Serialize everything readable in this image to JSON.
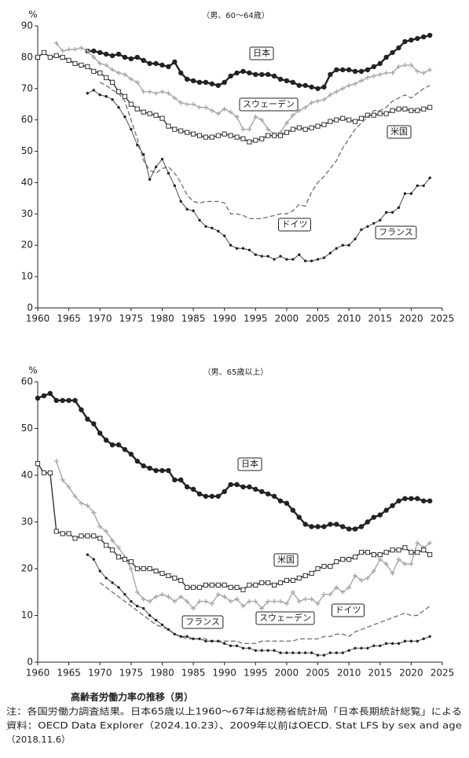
{
  "chart_data": [
    {
      "type": "line",
      "subtitle": "（男、60～64歳）",
      "ylabel": "%",
      "x": [
        1960,
        1961,
        1962,
        1963,
        1964,
        1965,
        1966,
        1967,
        1968,
        1969,
        1970,
        1971,
        1972,
        1973,
        1974,
        1975,
        1976,
        1977,
        1978,
        1979,
        1980,
        1981,
        1982,
        1983,
        1984,
        1985,
        1986,
        1987,
        1988,
        1989,
        1990,
        1991,
        1992,
        1993,
        1994,
        1995,
        1996,
        1997,
        1998,
        1999,
        2000,
        2001,
        2002,
        2003,
        2004,
        2005,
        2006,
        2007,
        2008,
        2009,
        2010,
        2011,
        2012,
        2013,
        2014,
        2015,
        2016,
        2017,
        2018,
        2019,
        2020,
        2021,
        2022,
        2023
      ],
      "xlim": [
        1960,
        2025
      ],
      "xticks": [
        1960,
        1965,
        1970,
        1975,
        1980,
        1985,
        1990,
        1995,
        2000,
        2005,
        2010,
        2015,
        2020,
        2025
      ],
      "ylim": [
        0,
        90
      ],
      "yticks": [
        0,
        10,
        20,
        30,
        40,
        50,
        60,
        70,
        80,
        90
      ],
      "series": [
        {
          "name": "日本",
          "color": "#222222",
          "marker": "circle",
          "dash": false,
          "values": [
            null,
            null,
            null,
            null,
            null,
            null,
            null,
            null,
            82,
            82,
            81.5,
            81,
            80.5,
            81,
            80,
            79.5,
            80,
            79,
            78,
            78,
            77.5,
            77,
            78.5,
            75,
            73,
            72.5,
            72,
            72,
            71.5,
            71,
            72,
            74,
            75,
            75.5,
            75,
            74.5,
            74.5,
            74.5,
            74,
            73,
            72.5,
            72,
            71,
            71,
            70.5,
            70,
            70.5,
            74.5,
            76,
            76,
            76,
            75.5,
            75.5,
            76,
            77,
            78,
            80,
            81.5,
            83,
            85,
            85.5,
            86,
            86.5,
            87
          ]
        },
        {
          "name": "スウェーデン",
          "color": "#a8a8a8",
          "marker": "plus",
          "dash": false,
          "values": [
            null,
            null,
            null,
            84.5,
            82,
            82.5,
            82.5,
            83,
            82,
            80,
            78,
            77.5,
            76,
            75,
            74.5,
            73,
            72,
            69,
            69,
            68.5,
            69,
            68.5,
            67,
            65.5,
            65,
            65,
            64,
            64,
            63,
            62,
            63.5,
            62.5,
            61,
            57,
            57,
            61,
            60,
            57,
            55.5,
            56,
            59,
            61.5,
            63,
            64,
            65.5,
            66,
            66.5,
            68,
            69,
            70,
            71,
            71.5,
            72.5,
            73.5,
            74,
            74.5,
            75,
            75,
            77,
            77.5,
            77.5,
            75.5,
            75,
            76
          ]
        },
        {
          "name": "米国",
          "color": "#333333",
          "marker": "square",
          "dash": false,
          "values": [
            80,
            81.5,
            80,
            80.5,
            80,
            79,
            78,
            77.5,
            77,
            75.5,
            75,
            73.5,
            72,
            69,
            67.5,
            65,
            63.5,
            62.5,
            62,
            61.5,
            60.5,
            58,
            57,
            56.5,
            56,
            55.5,
            55,
            54.5,
            54.5,
            55,
            55.5,
            55,
            54.5,
            54,
            53,
            53.5,
            54,
            55,
            55,
            55,
            56,
            57,
            57.5,
            57,
            57.5,
            58,
            58.5,
            59.5,
            60,
            60.5,
            60,
            59.5,
            60.5,
            61.5,
            61.5,
            62,
            62,
            63,
            63.5,
            63.5,
            63,
            63,
            63.5,
            64
          ]
        },
        {
          "name": "ドイツ",
          "color": "#777777",
          "marker": "none",
          "dash": true,
          "values": [
            null,
            null,
            null,
            null,
            null,
            null,
            null,
            null,
            null,
            null,
            72,
            71,
            69.5,
            68.5,
            66,
            60,
            54,
            47,
            44,
            43,
            44.5,
            45,
            43,
            40,
            36,
            34,
            33.5,
            34,
            34,
            34,
            33.5,
            30,
            30,
            29.5,
            28.5,
            28.5,
            28.5,
            29,
            29.5,
            30,
            30,
            31,
            33,
            32.5,
            37,
            40,
            42,
            44.5,
            47,
            51,
            54,
            57,
            59,
            61,
            63,
            63,
            64,
            66,
            67,
            68,
            67,
            68.5,
            70,
            71
          ]
        },
        {
          "name": "フランス",
          "color": "#222222",
          "marker": "dot",
          "dash": false,
          "values": [
            null,
            null,
            null,
            null,
            null,
            null,
            null,
            null,
            68.5,
            69.5,
            68,
            67.5,
            66.5,
            64,
            61,
            57,
            52,
            49,
            41,
            45,
            47.5,
            43,
            39,
            34,
            31.5,
            31,
            28,
            26,
            25.5,
            24.5,
            23,
            20,
            19,
            19,
            18.5,
            17,
            16.5,
            16.5,
            15.5,
            16.5,
            15.5,
            15.5,
            17,
            15,
            15,
            15.5,
            16,
            17.5,
            19,
            20,
            20,
            22,
            25,
            26,
            27,
            28,
            30.5,
            30.5,
            32,
            36.5,
            36.5,
            39,
            39,
            41.5
          ]
        }
      ]
    },
    {
      "type": "line",
      "subtitle": "（男、65歳以上）",
      "ylabel": "%",
      "x": [
        1960,
        1961,
        1962,
        1963,
        1964,
        1965,
        1966,
        1967,
        1968,
        1969,
        1970,
        1971,
        1972,
        1973,
        1974,
        1975,
        1976,
        1977,
        1978,
        1979,
        1980,
        1981,
        1982,
        1983,
        1984,
        1985,
        1986,
        1987,
        1988,
        1989,
        1990,
        1991,
        1992,
        1993,
        1994,
        1995,
        1996,
        1997,
        1998,
        1999,
        2000,
        2001,
        2002,
        2003,
        2004,
        2005,
        2006,
        2007,
        2008,
        2009,
        2010,
        2011,
        2012,
        2013,
        2014,
        2015,
        2016,
        2017,
        2018,
        2019,
        2020,
        2021,
        2022,
        2023
      ],
      "xlim": [
        1960,
        2025
      ],
      "xticks": [
        1960,
        1965,
        1970,
        1975,
        1980,
        1985,
        1990,
        1995,
        2000,
        2005,
        2010,
        2015,
        2020,
        2025
      ],
      "ylim": [
        0,
        60
      ],
      "yticks": [
        0,
        10,
        20,
        30,
        40,
        50,
        60
      ],
      "series": [
        {
          "name": "日本",
          "color": "#222222",
          "marker": "circle",
          "dash": false,
          "values": [
            56.5,
            57,
            57.5,
            56,
            56,
            56,
            56,
            54,
            52,
            51,
            49,
            47.5,
            46.5,
            46.5,
            45.5,
            44.5,
            43,
            42,
            41.5,
            41,
            41,
            41,
            39,
            39,
            37.5,
            37,
            36,
            35.5,
            35.5,
            35.5,
            36.5,
            38,
            38,
            37.5,
            37.5,
            37,
            36.5,
            36,
            35.5,
            34.5,
            34,
            32.5,
            31,
            29.5,
            29,
            29,
            29,
            29.5,
            29.5,
            29,
            28.5,
            28.5,
            29,
            30,
            31,
            31.5,
            32.5,
            33.5,
            34.5,
            35,
            35,
            35,
            34.5,
            34.5
          ]
        },
        {
          "name": "スウェーデン",
          "color": "#a8a8a8",
          "marker": "plus",
          "dash": false,
          "values": [
            null,
            null,
            null,
            43,
            39,
            37.5,
            35.5,
            34,
            33.5,
            32,
            29,
            28,
            26,
            24.5,
            22.5,
            20,
            15,
            13.5,
            13,
            14,
            14.5,
            14,
            13,
            14,
            13,
            11.5,
            13,
            13,
            12.5,
            14.5,
            14,
            13,
            13.5,
            12,
            13,
            13,
            11.5,
            13,
            13,
            13,
            12.5,
            15,
            13,
            13.5,
            13.5,
            12.5,
            14.5,
            14.5,
            16,
            15,
            16,
            18.5,
            17.5,
            18,
            19.5,
            22,
            21,
            19,
            22,
            21,
            21,
            25.5,
            24.5,
            25.5
          ]
        },
        {
          "name": "米国",
          "color": "#333333",
          "marker": "square",
          "dash": false,
          "values": [
            42.5,
            40.5,
            40.5,
            28,
            27.5,
            27.5,
            26.5,
            27,
            27,
            27,
            26.5,
            25,
            24,
            22.5,
            22,
            21.5,
            20,
            20,
            20,
            19.5,
            19,
            18.5,
            18,
            17.5,
            16,
            16,
            16,
            16.5,
            16.5,
            16.5,
            16.5,
            16,
            16,
            15.5,
            16.5,
            16.5,
            17,
            17,
            16.5,
            17,
            17.5,
            17.5,
            18,
            18.5,
            19,
            20,
            20.5,
            20.5,
            21.5,
            22,
            22,
            22.5,
            23.5,
            23.5,
            23,
            23,
            23.5,
            24,
            24,
            24.5,
            23.5,
            23.5,
            24,
            23
          ]
        },
        {
          "name": "ドイツ",
          "color": "#777777",
          "marker": "none",
          "dash": true,
          "values": [
            null,
            null,
            null,
            null,
            null,
            null,
            null,
            null,
            null,
            null,
            17,
            16,
            15,
            14,
            13,
            12,
            11,
            10,
            9,
            8,
            7.5,
            7,
            6,
            5.5,
            5,
            5,
            5,
            5,
            4.5,
            4.5,
            4.5,
            4.5,
            4.5,
            4,
            4,
            4,
            4.5,
            4.5,
            4.5,
            4.5,
            4.5,
            4.5,
            5,
            5,
            5,
            5,
            5.5,
            5.5,
            6,
            6,
            5.5,
            6.5,
            7,
            7.5,
            8,
            8.5,
            9,
            9.5,
            10,
            10.5,
            10,
            10,
            11,
            12
          ]
        },
        {
          "name": "フランス",
          "color": "#222222",
          "marker": "dot",
          "dash": false,
          "values": [
            null,
            null,
            null,
            null,
            null,
            null,
            null,
            null,
            23,
            22,
            19.5,
            18,
            17,
            16,
            14.5,
            13,
            12,
            11.5,
            10,
            9,
            8,
            7,
            6,
            5.5,
            5.5,
            5,
            5,
            4.5,
            4.5,
            4.5,
            4,
            3.5,
            3.5,
            3,
            3,
            2.5,
            2.5,
            2.5,
            2.5,
            2,
            2,
            2,
            2,
            2,
            2,
            1.5,
            1.5,
            2,
            2,
            2,
            2.5,
            3,
            3,
            3,
            3.5,
            3.5,
            4,
            4,
            4,
            4.5,
            4.5,
            4.5,
            5,
            5.5
          ]
        }
      ]
    }
  ],
  "caption": {
    "title": "高齢者労働力率の推移（男）",
    "notes": [
      "注：各国労働力調査結果。日本65歳以上1960～67年は総務省統計局「日本長期統計総覧」による",
      "資料：OECD Data Explorer（2024.10.23）、2009年以前はOECD. Stat LFS by sex and age",
      "（2018.11.6）"
    ]
  }
}
